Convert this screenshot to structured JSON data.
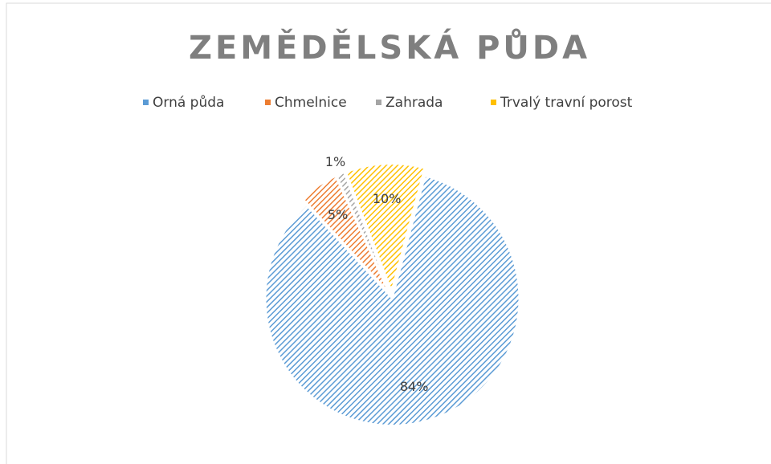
{
  "chart_data": {
    "type": "pie",
    "title": "ZEMĚDĚLSKÁ PŮDA",
    "categories": [
      "Orná půda",
      "Chmelnice",
      "Zahrada",
      "Trvalý travní porost"
    ],
    "values": [
      84,
      5,
      1,
      10
    ],
    "value_labels": [
      "84%",
      "5%",
      "1%",
      "10%"
    ],
    "colors": [
      "#5b9bd5",
      "#ed7d31",
      "#a5a5a5",
      "#ffc000"
    ],
    "legend": "top"
  }
}
